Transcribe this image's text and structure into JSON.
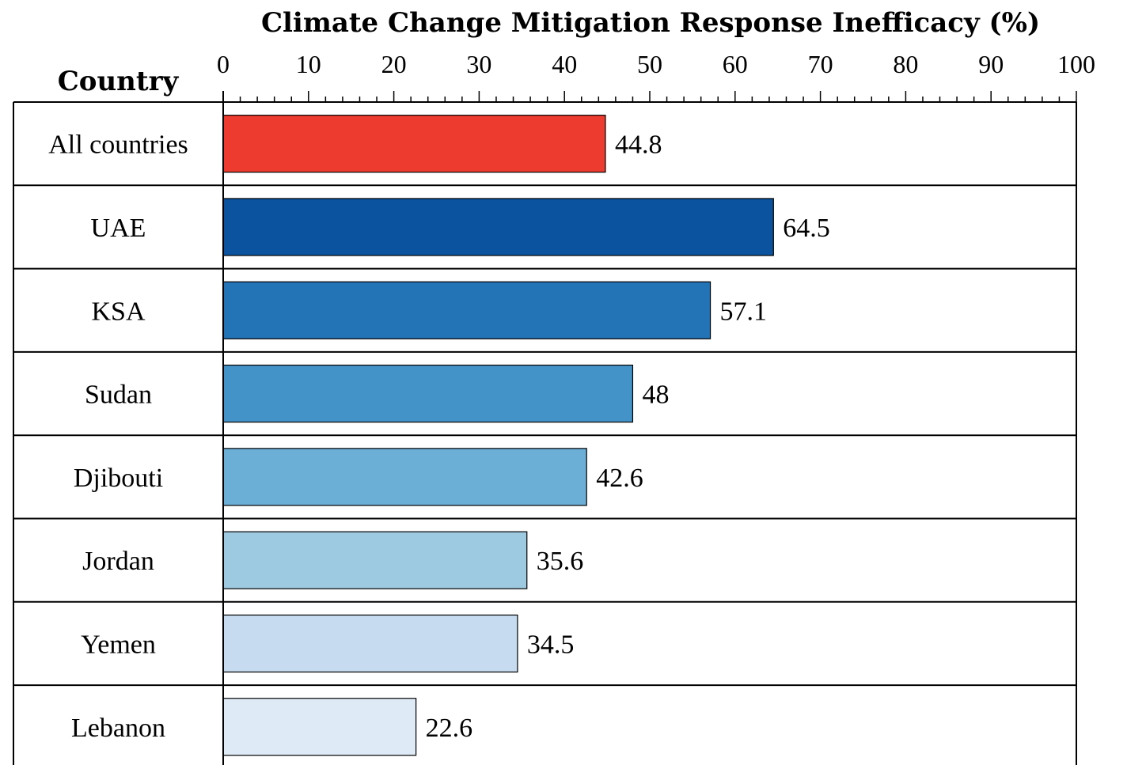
{
  "chart_data": {
    "type": "bar",
    "orientation": "horizontal",
    "title": "Climate Change Mitigation Response Inefficacy (%)",
    "category_header": "Country",
    "categories": [
      "All countries",
      "UAE",
      "KSA",
      "Sudan",
      "Djibouti",
      "Jordan",
      "Yemen",
      "Lebanon"
    ],
    "values": [
      44.8,
      64.5,
      57.1,
      48,
      42.6,
      35.6,
      34.5,
      22.6
    ],
    "value_labels": [
      "44.8",
      "64.5",
      "57.1",
      "48",
      "42.6",
      "35.6",
      "34.5",
      "22.6"
    ],
    "colors": [
      "#EE3B2F",
      "#0B539E",
      "#2373B7",
      "#4393C8",
      "#6BAED6",
      "#9ECAE1",
      "#C6DBEF",
      "#DEEBF7"
    ],
    "xlim": [
      0,
      100
    ],
    "xticks": [
      0,
      10,
      20,
      30,
      40,
      50,
      60,
      70,
      80,
      90,
      100
    ],
    "xtick_labels": [
      "0",
      "10",
      "20",
      "30",
      "40",
      "50",
      "60",
      "70",
      "80",
      "90",
      "100"
    ],
    "minor_tick_step": 2,
    "axis_position": "top",
    "grid": false,
    "legend": "none"
  }
}
